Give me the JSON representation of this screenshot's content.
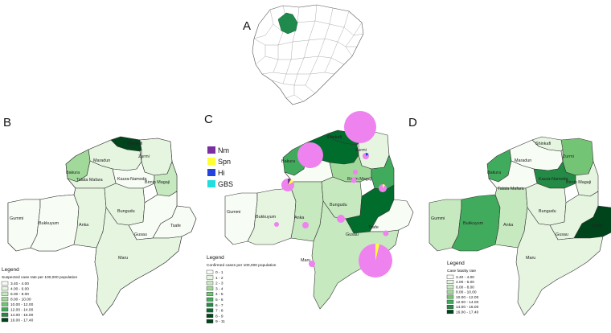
{
  "panels": {
    "A": {
      "letter": "A"
    },
    "B": {
      "letter": "B",
      "legend_title": "Legend",
      "legend_subtitle": "Suspected case rate per 100,000 population",
      "legend_items": [
        "3.40 - 4.00",
        "4.00 - 6.00",
        "6.00 - 8.00",
        "8.00 - 10.00",
        "10.00 - 12.00",
        "12.00 - 14.00",
        "14.00 - 16.00",
        "16.00 - 17.40"
      ]
    },
    "C": {
      "letter": "C",
      "legend_title": "Legend",
      "legend_subtitle": "Confirmed cases per 100,000 population",
      "legend_items": [
        "0 - 1",
        "1 - 2",
        "2 - 3",
        "3 - 4",
        "4 - 5",
        "5 - 6",
        "6 - 7",
        "7 - 8",
        "8 - 9",
        "9 - 11"
      ],
      "pathogen_legend": [
        {
          "label": "Nm",
          "color": "#7a2ea0"
        },
        {
          "label": "Spn",
          "color": "#ffff33"
        },
        {
          "label": "Hi",
          "color": "#2244dd"
        },
        {
          "label": "GBS",
          "color": "#22dddd"
        }
      ]
    },
    "D": {
      "letter": "D",
      "legend_title": "Legend",
      "legend_subtitle": "Case fatality rate",
      "legend_items": [
        "3.40 - 4.00",
        "4.00 - 6.00",
        "6.00 - 8.00",
        "8.00 - 10.00",
        "10.00 - 12.00",
        "12.00 - 14.00",
        "14.00 - 16.00",
        "16.00 - 17.40"
      ]
    }
  },
  "lga_names": {
    "shinkafi": "Shinkafi",
    "zurmi": "Zurmi",
    "maradun": "Maradun",
    "bakura": "Bakura",
    "kaura_namoda": "Kaura-Namoda",
    "talata_mafara": "Talata Mafara",
    "birnin_magaji": "Birnin Magaji",
    "gummi": "Gummi",
    "bukkuyum": "Bukkuyum",
    "anka": "Anka",
    "bungudu": "Bungudu",
    "gusau": "Gusau",
    "tsafe": "Tsafe",
    "maru": "Maru"
  },
  "colors": {
    "scale_5": [
      "#f7fcf5",
      "#e5f5e0",
      "#c7e9c0",
      "#a1d99b",
      "#74c476",
      "#41ab5d",
      "#238b45",
      "#006d2c",
      "#00441b"
    ],
    "pie_main": "#ee82ee",
    "highlight_state": "#1f8a4c"
  }
}
